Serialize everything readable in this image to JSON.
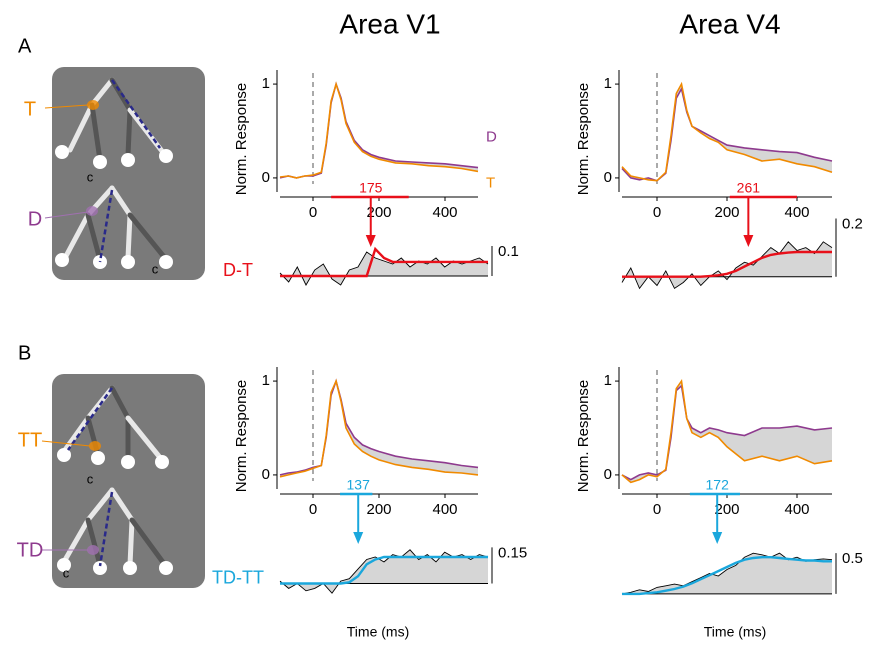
{
  "panel_labels": [
    "A",
    "B"
  ],
  "column_titles": [
    "Area V1",
    "Area V4"
  ],
  "x_label": "Time (ms)",
  "diagrams": [
    {
      "labels": [
        "T",
        "D"
      ],
      "notes": [
        "c",
        "c"
      ]
    },
    {
      "labels": [
        "TT",
        "TD"
      ],
      "notes": [
        "c",
        "c"
      ]
    }
  ],
  "chart_data": [
    {
      "type": "line",
      "y_label": "Norm. Response",
      "x": [
        -100,
        -75,
        -50,
        -25,
        0,
        25,
        40,
        55,
        70,
        85,
        100,
        125,
        150,
        175,
        200,
        250,
        300,
        350,
        400,
        450,
        500
      ],
      "series": [
        {
          "name": "D",
          "color": "#8e3a8e",
          "values": [
            0.0,
            0.02,
            0.0,
            0.02,
            0.02,
            0.05,
            0.35,
            0.8,
            1.0,
            0.85,
            0.6,
            0.4,
            0.3,
            0.25,
            0.22,
            0.18,
            0.17,
            0.16,
            0.15,
            0.13,
            0.11
          ]
        },
        {
          "name": "T",
          "color": "#f08a00",
          "values": [
            0.01,
            0.02,
            0.0,
            0.02,
            0.03,
            0.06,
            0.37,
            0.82,
            1.0,
            0.83,
            0.58,
            0.38,
            0.28,
            0.23,
            0.2,
            0.16,
            0.15,
            0.13,
            0.12,
            0.1,
            0.07
          ]
        }
      ],
      "xlim": [
        -100,
        500
      ],
      "ylim": [
        -0.15,
        1.15
      ],
      "xticks": [
        0,
        200,
        400
      ],
      "yticks": [
        0,
        1
      ],
      "reference_line": 0,
      "latency": 175,
      "latency_range": [
        55,
        290
      ],
      "latency_color": "#e8101a"
    },
    {
      "type": "line",
      "y_label": "Norm. Response",
      "x": [
        -100,
        -75,
        -50,
        -25,
        0,
        25,
        40,
        55,
        70,
        85,
        100,
        125,
        150,
        175,
        200,
        250,
        300,
        350,
        400,
        450,
        500
      ],
      "series": [
        {
          "color": "#8e3a8e",
          "values": [
            0.1,
            0.0,
            -0.02,
            0.0,
            -0.03,
            0.05,
            0.4,
            0.85,
            0.95,
            0.7,
            0.55,
            0.5,
            0.45,
            0.4,
            0.35,
            0.32,
            0.3,
            0.28,
            0.27,
            0.22,
            0.18
          ]
        },
        {
          "color": "#f08a00",
          "values": [
            0.12,
            0.02,
            0.0,
            -0.02,
            -0.03,
            0.06,
            0.45,
            0.9,
            1.0,
            0.72,
            0.55,
            0.48,
            0.42,
            0.38,
            0.3,
            0.25,
            0.18,
            0.2,
            0.15,
            0.12,
            0.06
          ]
        }
      ],
      "xlim": [
        -100,
        500
      ],
      "ylim": [
        -0.15,
        1.15
      ],
      "xticks": [
        0,
        200,
        400
      ],
      "yticks": [
        0,
        1
      ],
      "reference_line": 0,
      "latency": 261,
      "latency_range": [
        208,
        400
      ],
      "latency_color": "#e8101a"
    },
    {
      "type": "line",
      "y_label": "Norm. Response",
      "x": [
        -100,
        -75,
        -50,
        -25,
        0,
        25,
        40,
        55,
        70,
        85,
        100,
        125,
        150,
        175,
        200,
        250,
        300,
        350,
        400,
        450,
        500
      ],
      "series": [
        {
          "color": "#8e3a8e",
          "values": [
            0.0,
            0.02,
            0.03,
            0.05,
            0.08,
            0.1,
            0.4,
            0.85,
            1.0,
            0.8,
            0.55,
            0.4,
            0.32,
            0.28,
            0.25,
            0.2,
            0.17,
            0.15,
            0.13,
            0.1,
            0.08
          ]
        },
        {
          "color": "#f08a00",
          "values": [
            -0.02,
            0.0,
            0.02,
            0.04,
            0.07,
            0.1,
            0.42,
            0.88,
            1.0,
            0.78,
            0.5,
            0.33,
            0.25,
            0.2,
            0.16,
            0.11,
            0.08,
            0.06,
            0.03,
            0.02,
            0.0
          ]
        }
      ],
      "xlim": [
        -100,
        500
      ],
      "ylim": [
        -0.15,
        1.15
      ],
      "xticks": [
        0,
        200,
        400
      ],
      "yticks": [
        0,
        1
      ],
      "reference_line": 0,
      "latency": 137,
      "latency_range": [
        82,
        180
      ],
      "latency_color": "#1aa7dc"
    },
    {
      "type": "line",
      "y_label": "Norm. Response",
      "x": [
        -100,
        -75,
        -50,
        -25,
        0,
        25,
        40,
        55,
        70,
        85,
        100,
        125,
        150,
        175,
        200,
        250,
        300,
        350,
        400,
        450,
        500
      ],
      "series": [
        {
          "color": "#8e3a8e",
          "values": [
            0.0,
            -0.05,
            0.0,
            0.02,
            0.0,
            0.05,
            0.4,
            0.9,
            0.95,
            0.6,
            0.5,
            0.45,
            0.5,
            0.48,
            0.45,
            0.42,
            0.5,
            0.5,
            0.52,
            0.48,
            0.5
          ]
        },
        {
          "color": "#f08a00",
          "values": [
            0.0,
            -0.08,
            -0.05,
            0.0,
            -0.02,
            0.06,
            0.45,
            0.92,
            1.0,
            0.6,
            0.45,
            0.4,
            0.45,
            0.4,
            0.3,
            0.15,
            0.2,
            0.15,
            0.2,
            0.12,
            0.15
          ]
        }
      ],
      "xlim": [
        -100,
        500
      ],
      "ylim": [
        -0.15,
        1.15
      ],
      "xticks": [
        0,
        200,
        400
      ],
      "yticks": [
        0,
        1
      ],
      "reference_line": 0,
      "latency": 172,
      "latency_range": [
        94,
        237
      ],
      "latency_color": "#1aa7dc"
    },
    {
      "type": "difference",
      "title": "D-T",
      "color": "#e8101a",
      "x": [
        -100,
        -75,
        -50,
        -25,
        0,
        25,
        50,
        75,
        100,
        125,
        150,
        175,
        200,
        225,
        250,
        275,
        300,
        325,
        350,
        375,
        400,
        425,
        450,
        475,
        500
      ],
      "series": [
        {
          "color": "#000000",
          "values": [
            0.01,
            -0.02,
            0.03,
            -0.03,
            0.02,
            0.04,
            -0.01,
            -0.03,
            0.02,
            0.03,
            0.08,
            0.06,
            0.05,
            0.04,
            0.06,
            0.03,
            0.05,
            0.04,
            0.06,
            0.03,
            0.05,
            0.04,
            0.05,
            0.06,
            0.04
          ]
        },
        {
          "color": "#e8101a",
          "values": [
            0,
            0,
            0,
            0,
            0,
            0,
            0,
            0,
            0,
            0,
            0,
            0.09,
            0.06,
            0.047,
            0.047,
            0.047,
            0.047,
            0.047,
            0.047,
            0.047,
            0.047,
            0.047,
            0.047,
            0.047,
            0.047
          ]
        }
      ],
      "xlim": [
        -100,
        500
      ],
      "ylim": [
        -0.08,
        0.12
      ],
      "scalebar": 0.1
    },
    {
      "type": "difference",
      "color": "#e8101a",
      "x": [
        -100,
        -75,
        -50,
        -25,
        0,
        25,
        50,
        75,
        100,
        125,
        150,
        175,
        200,
        225,
        250,
        275,
        300,
        325,
        350,
        375,
        400,
        425,
        450,
        475,
        500
      ],
      "series": [
        {
          "color": "#000000",
          "values": [
            -0.02,
            0.03,
            -0.04,
            0.0,
            -0.03,
            0.02,
            -0.04,
            -0.02,
            0.01,
            -0.03,
            0.0,
            0.02,
            -0.01,
            0.03,
            0.05,
            0.04,
            0.07,
            0.1,
            0.08,
            0.12,
            0.09,
            0.1,
            0.08,
            0.12,
            0.1
          ]
        },
        {
          "color": "#e8101a",
          "values": [
            0,
            0,
            0,
            0,
            0,
            0,
            0,
            0,
            0,
            0,
            0.002,
            0.005,
            0.01,
            0.02,
            0.035,
            0.05,
            0.065,
            0.075,
            0.08,
            0.083,
            0.085,
            0.085,
            0.085,
            0.085,
            0.085
          ]
        }
      ],
      "xlim": [
        -100,
        500
      ],
      "ylim": [
        -0.08,
        0.14
      ],
      "scalebar": 0.2
    },
    {
      "type": "difference",
      "title": "TD-TT",
      "color": "#1aa7dc",
      "x": [
        -100,
        -75,
        -50,
        -25,
        0,
        25,
        50,
        75,
        100,
        125,
        150,
        175,
        200,
        225,
        250,
        275,
        300,
        325,
        350,
        375,
        400,
        425,
        450,
        475,
        500
      ],
      "series": [
        {
          "color": "#000000",
          "values": [
            0.01,
            -0.02,
            0.0,
            -0.03,
            -0.02,
            0.0,
            -0.04,
            0.01,
            0.02,
            0.06,
            0.1,
            0.11,
            0.09,
            0.12,
            0.11,
            0.14,
            0.1,
            0.12,
            0.09,
            0.13,
            0.11,
            0.12,
            0.1,
            0.12,
            0.11
          ]
        },
        {
          "color": "#1aa7dc",
          "values": [
            0,
            0,
            0,
            0,
            0,
            0,
            0,
            0,
            0.005,
            0.03,
            0.08,
            0.1,
            0.11,
            0.11,
            0.11,
            0.11,
            0.11,
            0.11,
            0.11,
            0.11,
            0.11,
            0.11,
            0.11,
            0.11,
            0.11
          ]
        }
      ],
      "xlim": [
        -100,
        500
      ],
      "ylim": [
        -0.06,
        0.16
      ],
      "scalebar": 0.15
    },
    {
      "type": "difference",
      "color": "#1aa7dc",
      "x": [
        -100,
        -75,
        -50,
        -25,
        0,
        25,
        50,
        75,
        100,
        125,
        150,
        175,
        200,
        225,
        250,
        275,
        300,
        325,
        350,
        375,
        400,
        425,
        450,
        475,
        500
      ],
      "series": [
        {
          "color": "#000000",
          "values": [
            0.0,
            0.02,
            0.05,
            0.03,
            0.08,
            0.1,
            0.12,
            0.1,
            0.15,
            0.2,
            0.25,
            0.22,
            0.3,
            0.35,
            0.45,
            0.5,
            0.48,
            0.45,
            0.5,
            0.42,
            0.45,
            0.4,
            0.42,
            0.43,
            0.42
          ]
        },
        {
          "color": "#1aa7dc",
          "values": [
            0,
            0,
            0,
            0.01,
            0.02,
            0.04,
            0.06,
            0.09,
            0.13,
            0.18,
            0.23,
            0.28,
            0.33,
            0.38,
            0.42,
            0.44,
            0.45,
            0.45,
            0.44,
            0.43,
            0.42,
            0.41,
            0.41,
            0.4,
            0.4
          ]
        }
      ],
      "xlim": [
        -100,
        500
      ],
      "ylim": [
        -0.05,
        0.6
      ],
      "scalebar": 0.5
    }
  ]
}
